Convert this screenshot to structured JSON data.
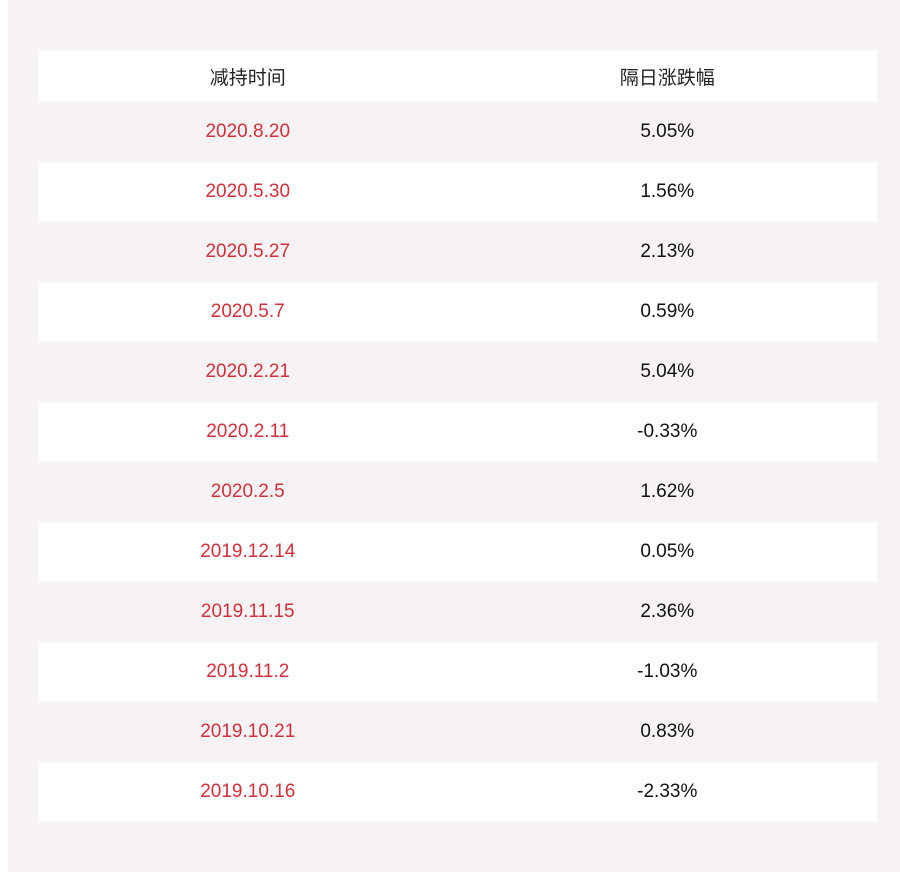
{
  "table": {
    "headers": [
      "减持时间",
      "隔日涨跌幅"
    ],
    "rows": [
      {
        "date": "2020.8.20",
        "change": "5.05%"
      },
      {
        "date": "2020.5.30",
        "change": "1.56%"
      },
      {
        "date": "2020.5.27",
        "change": "2.13%"
      },
      {
        "date": "2020.5.7",
        "change": "0.59%"
      },
      {
        "date": "2020.2.21",
        "change": "5.04%"
      },
      {
        "date": "2020.2.11",
        "change": "-0.33%"
      },
      {
        "date": "2020.2.5",
        "change": "1.62%"
      },
      {
        "date": "2019.12.14",
        "change": "0.05%"
      },
      {
        "date": "2019.11.15",
        "change": "2.36%"
      },
      {
        "date": "2019.11.2",
        "change": "-1.03%"
      },
      {
        "date": "2019.10.21",
        "change": "0.83%"
      },
      {
        "date": "2019.10.16",
        "change": "-2.33%"
      }
    ]
  },
  "colors": {
    "panel_background": "#f7f3f4",
    "date_text": "#d0303a",
    "value_text": "#111111"
  }
}
